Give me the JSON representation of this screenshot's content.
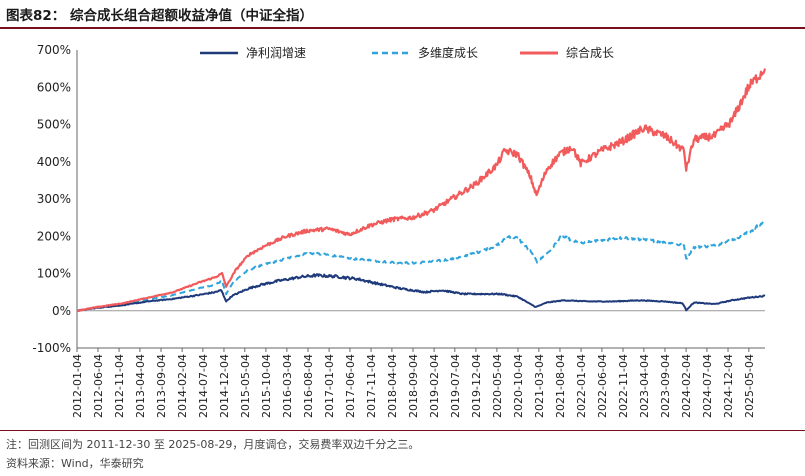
{
  "title": "图表82：  综合成长组合超额收益净值（中证全指）",
  "note": "注：回测区间为 2011-12-30 至 2025-08-29，月度调仓，交易费率双边千分之三。",
  "source": "资料来源：Wind，华泰研究",
  "colors": {
    "net_profit": "#1f3a7a",
    "multi_growth": "#2ea3dc",
    "composite": "#f25b5b"
  },
  "chart_data": {
    "type": "line",
    "title": "综合成长组合超额收益净值（中证全指）",
    "xlabel": "",
    "ylabel": "",
    "ylim": [
      -100,
      700
    ],
    "yticks": [
      -100,
      0,
      100,
      200,
      300,
      400,
      500,
      600,
      700
    ],
    "ytick_labels": [
      "-100%",
      "0%",
      "100%",
      "200%",
      "300%",
      "400%",
      "500%",
      "600%",
      "700%"
    ],
    "x_start": "2012-01-04",
    "x_end": "2025-08-29",
    "x_ticks": [
      "2012-01-04",
      "2012-06-04",
      "2012-11-04",
      "2013-04-04",
      "2013-09-04",
      "2014-02-04",
      "2014-07-04",
      "2014-12-04",
      "2015-05-04",
      "2015-10-04",
      "2016-03-04",
      "2016-08-04",
      "2017-01-04",
      "2017-06-04",
      "2017-11-04",
      "2018-04-04",
      "2018-09-04",
      "2019-02-04",
      "2019-07-04",
      "2019-12-04",
      "2020-05-04",
      "2020-10-04",
      "2021-03-04",
      "2021-08-04",
      "2022-01-04",
      "2022-06-04",
      "2022-11-04",
      "2023-04-04",
      "2023-09-04",
      "2024-02-04",
      "2024-07-04",
      "2024-12-04",
      "2025-05-04"
    ],
    "legend": [
      "净利润增速",
      "多维度成长",
      "综合成长"
    ],
    "legend_position": "top",
    "series": [
      {
        "name": "净利润增速",
        "style": "solid",
        "color": "#1f3a7a",
        "points": [
          [
            "2012-01-04",
            0
          ],
          [
            "2012-06-01",
            8
          ],
          [
            "2012-12-01",
            15
          ],
          [
            "2013-06-01",
            25
          ],
          [
            "2013-12-01",
            32
          ],
          [
            "2014-06-01",
            42
          ],
          [
            "2014-10-01",
            50
          ],
          [
            "2014-11-15",
            55
          ],
          [
            "2014-12-20",
            25
          ],
          [
            "2015-02-01",
            40
          ],
          [
            "2015-06-01",
            60
          ],
          [
            "2015-09-01",
            70
          ],
          [
            "2016-01-01",
            80
          ],
          [
            "2016-06-01",
            90
          ],
          [
            "2016-10-01",
            95
          ],
          [
            "2017-03-01",
            92
          ],
          [
            "2017-08-01",
            85
          ],
          [
            "2018-01-01",
            72
          ],
          [
            "2018-06-01",
            60
          ],
          [
            "2018-12-01",
            50
          ],
          [
            "2019-04-01",
            55
          ],
          [
            "2019-09-01",
            45
          ],
          [
            "2020-02-01",
            45
          ],
          [
            "2020-06-01",
            45
          ],
          [
            "2020-10-01",
            38
          ],
          [
            "2021-01-01",
            18
          ],
          [
            "2021-02-10",
            10
          ],
          [
            "2021-05-01",
            22
          ],
          [
            "2021-09-01",
            28
          ],
          [
            "2022-03-01",
            25
          ],
          [
            "2022-09-01",
            25
          ],
          [
            "2023-03-01",
            28
          ],
          [
            "2023-09-01",
            25
          ],
          [
            "2024-01-10",
            20
          ],
          [
            "2024-02-05",
            2
          ],
          [
            "2024-04-01",
            22
          ],
          [
            "2024-09-01",
            18
          ],
          [
            "2025-01-01",
            28
          ],
          [
            "2025-05-01",
            35
          ],
          [
            "2025-08-29",
            40
          ]
        ]
      },
      {
        "name": "多维度成长",
        "style": "dashed",
        "color": "#2ea3dc",
        "points": [
          [
            "2012-01-04",
            0
          ],
          [
            "2012-06-01",
            10
          ],
          [
            "2012-12-01",
            18
          ],
          [
            "2013-06-01",
            30
          ],
          [
            "2013-12-01",
            42
          ],
          [
            "2014-06-01",
            60
          ],
          [
            "2014-10-01",
            70
          ],
          [
            "2014-11-20",
            80
          ],
          [
            "2014-12-20",
            45
          ],
          [
            "2015-02-15",
            80
          ],
          [
            "2015-06-01",
            110
          ],
          [
            "2015-10-01",
            125
          ],
          [
            "2016-03-01",
            140
          ],
          [
            "2016-08-01",
            155
          ],
          [
            "2017-01-01",
            150
          ],
          [
            "2017-06-01",
            140
          ],
          [
            "2017-11-01",
            135
          ],
          [
            "2018-04-01",
            130
          ],
          [
            "2018-09-01",
            128
          ],
          [
            "2019-02-01",
            132
          ],
          [
            "2019-07-01",
            140
          ],
          [
            "2019-12-01",
            155
          ],
          [
            "2020-05-01",
            175
          ],
          [
            "2020-08-01",
            200
          ],
          [
            "2020-10-01",
            195
          ],
          [
            "2021-01-01",
            160
          ],
          [
            "2021-02-20",
            130
          ],
          [
            "2021-06-01",
            165
          ],
          [
            "2021-08-15",
            200
          ],
          [
            "2022-01-01",
            180
          ],
          [
            "2022-06-01",
            190
          ],
          [
            "2022-11-01",
            195
          ],
          [
            "2023-04-01",
            190
          ],
          [
            "2023-09-01",
            185
          ],
          [
            "2024-01-20",
            175
          ],
          [
            "2024-02-05",
            140
          ],
          [
            "2024-04-01",
            170
          ],
          [
            "2024-09-01",
            175
          ],
          [
            "2025-01-01",
            190
          ],
          [
            "2025-05-01",
            210
          ],
          [
            "2025-08-29",
            240
          ]
        ]
      },
      {
        "name": "综合成长",
        "style": "solid",
        "color": "#f25b5b",
        "points": [
          [
            "2012-01-04",
            0
          ],
          [
            "2012-06-01",
            10
          ],
          [
            "2012-12-01",
            20
          ],
          [
            "2013-06-01",
            35
          ],
          [
            "2013-12-01",
            50
          ],
          [
            "2014-06-01",
            75
          ],
          [
            "2014-10-01",
            90
          ],
          [
            "2014-11-20",
            100
          ],
          [
            "2014-12-20",
            65
          ],
          [
            "2015-03-01",
            110
          ],
          [
            "2015-06-01",
            150
          ],
          [
            "2015-10-01",
            175
          ],
          [
            "2016-03-01",
            200
          ],
          [
            "2016-08-01",
            215
          ],
          [
            "2017-01-01",
            220
          ],
          [
            "2017-06-01",
            205
          ],
          [
            "2017-11-01",
            230
          ],
          [
            "2018-04-01",
            245
          ],
          [
            "2018-09-01",
            250
          ],
          [
            "2019-02-01",
            270
          ],
          [
            "2019-07-01",
            305
          ],
          [
            "2019-12-01",
            340
          ],
          [
            "2020-05-01",
            390
          ],
          [
            "2020-07-01",
            430
          ],
          [
            "2020-10-01",
            420
          ],
          [
            "2021-01-01",
            360
          ],
          [
            "2021-02-15",
            310
          ],
          [
            "2021-05-01",
            380
          ],
          [
            "2021-08-01",
            420
          ],
          [
            "2021-11-01",
            440
          ],
          [
            "2022-01-01",
            395
          ],
          [
            "2022-06-01",
            430
          ],
          [
            "2022-11-01",
            455
          ],
          [
            "2023-04-01",
            490
          ],
          [
            "2023-09-01",
            470
          ],
          [
            "2024-01-20",
            430
          ],
          [
            "2024-02-05",
            380
          ],
          [
            "2024-04-01",
            460
          ],
          [
            "2024-09-01",
            470
          ],
          [
            "2025-01-01",
            510
          ],
          [
            "2025-05-01",
            600
          ],
          [
            "2025-08-29",
            650
          ]
        ]
      }
    ]
  }
}
